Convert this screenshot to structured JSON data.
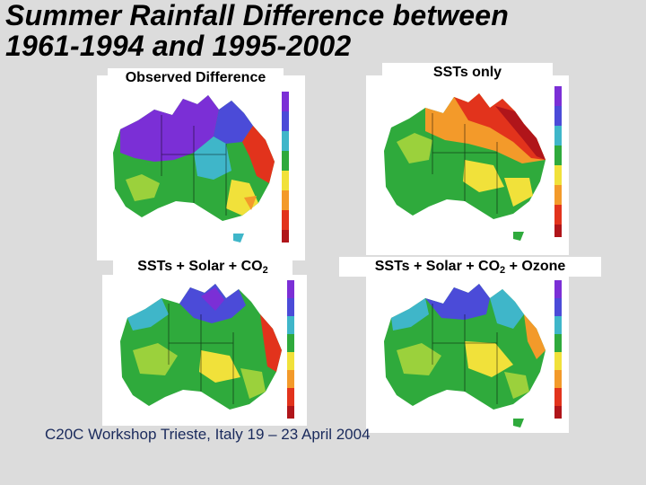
{
  "slide": {
    "title_line1": "Summer Rainfall Difference between",
    "title_line2": "1961-1994 and 1995-2002",
    "footer": "C20C Workshop Trieste, Italy 19 – 23 April 2004"
  },
  "panels": [
    {
      "label": "Observed Difference",
      "label_sub": "",
      "label_after": ""
    },
    {
      "label": "SSTs only",
      "label_sub": "",
      "label_after": ""
    },
    {
      "label": "SSTs + Solar + CO",
      "label_sub": "2",
      "label_after": ""
    },
    {
      "label": "SSTs + Solar + CO",
      "label_sub": "2",
      "label_after": " + Ozone"
    }
  ],
  "colors": {
    "purple": "#7b2fd6",
    "blue": "#4b4bd8",
    "cyan": "#3fb6c9",
    "green": "#2faa3c",
    "lightgreen": "#9bd13c",
    "yellow": "#f1e13a",
    "orange": "#f39a2a",
    "red": "#e2331c",
    "darkred": "#b0151a"
  }
}
